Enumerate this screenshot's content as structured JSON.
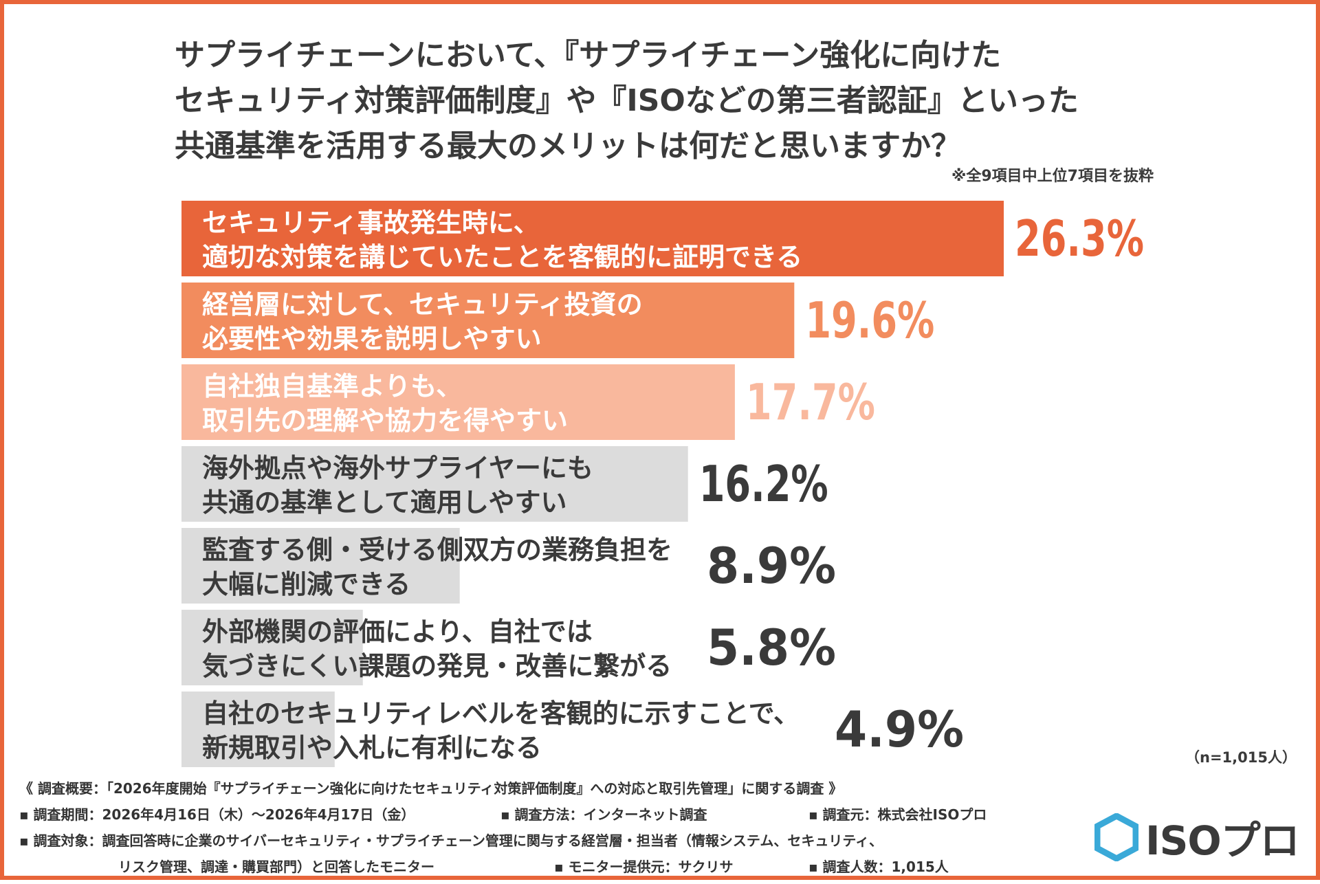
{
  "title": {
    "line1": "サプライチェーンにおいて、『サプライチェーン強化に向けた",
    "line2": "セキュリティ対策評価制度』や『ISOなどの第三者認証』といった",
    "line3": "共通基準を活用する最大のメリットは何だと思いますか？"
  },
  "note": "※全9項目中上位7項目を抜粋",
  "sample_size": "（n=1,015人）",
  "chart_data": {
    "type": "bar",
    "orientation": "horizontal",
    "xlim": [
      0,
      26.3
    ],
    "categories": [
      [
        "セキュリティ事故発生時に、",
        "適切な対策を講じていたことを客観的に証明できる"
      ],
      [
        "経営層に対して、セキュリティ投資の",
        "必要性や効果を説明しやすい"
      ],
      [
        "自社独自基準よりも、",
        "取引先の理解や協力を得やすい"
      ],
      [
        "海外拠点や海外サプライヤーにも",
        "共通の基準として適用しやすい"
      ],
      [
        "監査する側・受ける側双方の業務負担を",
        "大幅に削減できる"
      ],
      [
        "外部機関の評価により、自社では",
        "気づきにくい課題の発見・改善に繋がる"
      ],
      [
        "自社のセキュリティレベルを客観的に示すことで、",
        "新規取引や入札に有利になる"
      ]
    ],
    "values": [
      26.3,
      19.6,
      17.7,
      16.2,
      8.9,
      5.8,
      4.9
    ],
    "value_labels": [
      "26.3%",
      "19.6%",
      "17.7%",
      "16.2%",
      "8.9%",
      "5.8%",
      "4.9%"
    ],
    "bar_colors": [
      "#e8653a",
      "#f28c5e",
      "#f9b89d",
      "#dcdcdc",
      "#dcdcdc",
      "#dcdcdc",
      "#dcdcdc"
    ],
    "label_colors": [
      "#ffffff",
      "#ffffff",
      "#ffffff",
      "#3a3a3a",
      "#3a3a3a",
      "#3a3a3a",
      "#3a3a3a"
    ],
    "value_colors": [
      "#e8653a",
      "#f28c5e",
      "#f9b89d",
      "#3a3a3a",
      "#3a3a3a",
      "#3a3a3a",
      "#3a3a3a"
    ]
  },
  "footer": {
    "overview": "《 調査概要：「2026年度開始『サプライチェーン強化に向けたセキュリティ対策評価制度』への対応と取引先管理」に関する調査 》",
    "period": "▪ 調査期間：2026年4月16日（木）～2026年4月17日（金）",
    "method": "▪ 調査方法：インターネット調査",
    "source": "▪ 調査元：株式会社ISOプロ",
    "target_line1": "▪ 調査対象：調査回答時に企業のサイバーセキュリティ・サプライチェーン管理に関与する経営層・担当者（情報システム、セキュリティ、",
    "target_line2": "リスク管理、調達・購買部門）と回答したモニター",
    "monitor": "▪ モニター提供元：サクリサ",
    "count": "▪ 調査人数：1,015人"
  },
  "logo": {
    "text": "ISOプロ",
    "mark_color": "#3aa9d8",
    "icon": "hexagon-icon"
  }
}
